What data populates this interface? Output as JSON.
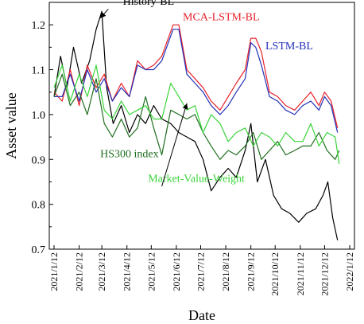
{
  "chart_data": {
    "type": "line",
    "xlabel": "Date",
    "ylabel": "Asset value",
    "xlim": [
      "2021-01-12",
      "2022-01-12"
    ],
    "ylim": [
      0.7,
      1.25
    ],
    "x_ticks": [
      "2021/1/12",
      "2021/2/12",
      "2021/3/12",
      "2021/4/12",
      "2021/5/12",
      "2021/6/12",
      "2021/7/12",
      "2021/8/12",
      "2021/9/12",
      "2021/10/12",
      "2021/11/12",
      "2021/12/12",
      "2022/1/12"
    ],
    "y_ticks": [
      "0.7",
      "0.8",
      "0.9",
      "1.0",
      "1.1",
      "1.2"
    ],
    "grid": false,
    "series": [
      {
        "name": "History-BL",
        "color": "#000000",
        "x": [
          "2021-01-12",
          "2021-01-20",
          "2021-01-28",
          "2021-02-05",
          "2021-02-15",
          "2021-02-25",
          "2021-03-05",
          "2021-03-12",
          "2021-03-18",
          "2021-03-26",
          "2021-04-05",
          "2021-04-15",
          "2021-04-25",
          "2021-05-05",
          "2021-05-15",
          "2021-05-25",
          "2021-06-05",
          "2021-06-15",
          "2021-06-25",
          "2021-07-05",
          "2021-07-15",
          "2021-07-25",
          "2021-08-05",
          "2021-08-15",
          "2021-08-25",
          "2021-09-05",
          "2021-09-12",
          "2021-09-20",
          "2021-09-30",
          "2021-10-10",
          "2021-10-20",
          "2021-10-30",
          "2021-11-10",
          "2021-11-20",
          "2021-12-01",
          "2021-12-10",
          "2021-12-16",
          "2021-12-22",
          "2021-12-28"
        ],
        "values": [
          1.04,
          1.13,
          1.06,
          1.15,
          1.07,
          1.12,
          1.19,
          1.23,
          1.06,
          0.98,
          1.02,
          0.96,
          1.0,
          0.98,
          1.02,
          0.99,
          0.98,
          0.96,
          0.95,
          0.94,
          0.9,
          0.83,
          0.86,
          0.88,
          0.86,
          0.92,
          0.98,
          0.85,
          0.9,
          0.82,
          0.79,
          0.78,
          0.76,
          0.78,
          0.79,
          0.82,
          0.85,
          0.77,
          0.72
        ]
      },
      {
        "name": "MCA-LSTM-BL",
        "color": "#e8212a",
        "x": [
          "2021-01-12",
          "2021-01-22",
          "2021-02-01",
          "2021-02-12",
          "2021-02-22",
          "2021-03-05",
          "2021-03-15",
          "2021-03-25",
          "2021-04-05",
          "2021-04-15",
          "2021-04-25",
          "2021-05-05",
          "2021-05-15",
          "2021-05-25",
          "2021-06-02",
          "2021-06-08",
          "2021-06-15",
          "2021-06-25",
          "2021-07-05",
          "2021-07-15",
          "2021-07-25",
          "2021-08-05",
          "2021-08-15",
          "2021-08-25",
          "2021-09-05",
          "2021-09-12",
          "2021-09-18",
          "2021-09-25",
          "2021-10-05",
          "2021-10-15",
          "2021-10-25",
          "2021-11-05",
          "2021-11-15",
          "2021-11-25",
          "2021-12-05",
          "2021-12-12",
          "2021-12-20",
          "2021-12-28"
        ],
        "values": [
          1.05,
          1.03,
          1.1,
          1.02,
          1.11,
          1.06,
          1.09,
          1.03,
          1.07,
          1.04,
          1.12,
          1.1,
          1.11,
          1.13,
          1.17,
          1.2,
          1.2,
          1.1,
          1.08,
          1.06,
          1.03,
          1.01,
          1.04,
          1.07,
          1.1,
          1.17,
          1.17,
          1.14,
          1.05,
          1.04,
          1.02,
          1.01,
          1.03,
          1.05,
          1.02,
          1.05,
          1.03,
          0.97
        ]
      },
      {
        "name": "LSTM-BL",
        "color": "#2230b8",
        "x": [
          "2021-01-12",
          "2021-01-22",
          "2021-02-01",
          "2021-02-12",
          "2021-02-22",
          "2021-03-05",
          "2021-03-15",
          "2021-03-25",
          "2021-04-05",
          "2021-04-15",
          "2021-04-25",
          "2021-05-05",
          "2021-05-15",
          "2021-05-25",
          "2021-06-02",
          "2021-06-08",
          "2021-06-15",
          "2021-06-25",
          "2021-07-05",
          "2021-07-15",
          "2021-07-25",
          "2021-08-05",
          "2021-08-15",
          "2021-08-25",
          "2021-09-05",
          "2021-09-12",
          "2021-09-18",
          "2021-09-25",
          "2021-10-05",
          "2021-10-15",
          "2021-10-25",
          "2021-11-05",
          "2021-11-15",
          "2021-11-25",
          "2021-12-05",
          "2021-12-12",
          "2021-12-20",
          "2021-12-28"
        ],
        "values": [
          1.04,
          1.04,
          1.09,
          1.03,
          1.1,
          1.05,
          1.08,
          1.03,
          1.06,
          1.04,
          1.11,
          1.1,
          1.1,
          1.12,
          1.16,
          1.19,
          1.19,
          1.09,
          1.07,
          1.05,
          1.02,
          1.0,
          1.02,
          1.05,
          1.08,
          1.16,
          1.15,
          1.11,
          1.04,
          1.03,
          1.01,
          1.0,
          1.02,
          1.03,
          1.01,
          1.04,
          1.02,
          0.96
        ]
      },
      {
        "name": "HS300 index",
        "color": "#1f6e1f",
        "x": [
          "2021-01-12",
          "2021-01-22",
          "2021-02-01",
          "2021-02-12",
          "2021-02-22",
          "2021-03-05",
          "2021-03-15",
          "2021-03-25",
          "2021-04-05",
          "2021-04-15",
          "2021-04-25",
          "2021-05-05",
          "2021-05-15",
          "2021-05-25",
          "2021-06-05",
          "2021-06-15",
          "2021-06-25",
          "2021-07-05",
          "2021-07-15",
          "2021-07-25",
          "2021-08-05",
          "2021-08-15",
          "2021-08-25",
          "2021-09-05",
          "2021-09-15",
          "2021-09-25",
          "2021-10-05",
          "2021-10-15",
          "2021-10-25",
          "2021-11-05",
          "2021-11-15",
          "2021-11-25",
          "2021-12-05",
          "2021-12-15",
          "2021-12-25",
          "2021-12-30"
        ],
        "values": [
          1.04,
          1.09,
          1.02,
          1.05,
          1.0,
          1.08,
          0.98,
          0.95,
          0.99,
          0.95,
          0.97,
          1.04,
          0.97,
          0.91,
          1.01,
          1.0,
          0.99,
          1.0,
          0.96,
          0.93,
          0.9,
          0.92,
          0.91,
          0.93,
          0.96,
          0.9,
          0.92,
          0.94,
          0.91,
          0.92,
          0.93,
          0.93,
          0.96,
          0.92,
          0.9,
          0.92
        ]
      },
      {
        "name": "Market-Value-Weight",
        "color": "#39d43a",
        "x": [
          "2021-01-12",
          "2021-01-22",
          "2021-02-01",
          "2021-02-12",
          "2021-02-22",
          "2021-03-05",
          "2021-03-15",
          "2021-03-25",
          "2021-04-05",
          "2021-04-15",
          "2021-04-25",
          "2021-05-05",
          "2021-05-15",
          "2021-05-25",
          "2021-06-05",
          "2021-06-15",
          "2021-06-25",
          "2021-07-05",
          "2021-07-15",
          "2021-07-25",
          "2021-08-05",
          "2021-08-15",
          "2021-08-25",
          "2021-09-05",
          "2021-09-15",
          "2021-09-25",
          "2021-10-05",
          "2021-10-15",
          "2021-10-25",
          "2021-11-05",
          "2021-11-15",
          "2021-11-25",
          "2021-12-05",
          "2021-12-15",
          "2021-12-25",
          "2021-12-30"
        ],
        "values": [
          1.06,
          1.11,
          1.03,
          1.09,
          1.04,
          1.11,
          1.01,
          0.99,
          1.03,
          1.0,
          1.01,
          1.02,
          0.99,
          0.99,
          1.07,
          1.04,
          1.01,
          1.02,
          0.96,
          1.0,
          0.98,
          0.94,
          0.96,
          0.97,
          0.93,
          0.96,
          0.95,
          0.93,
          0.96,
          0.94,
          0.94,
          0.98,
          0.93,
          0.96,
          0.95,
          0.89
        ]
      }
    ],
    "annotations": [
      {
        "text": "History-BL",
        "color": "#000000",
        "x": "2021-04-07",
        "y": 1.245
      },
      {
        "text": "MCA-LSTM-BL",
        "color": "#e8212a",
        "x": "2021-06-20",
        "y": 1.21
      },
      {
        "text": "LSTM-BL",
        "color": "#2230b8",
        "x": "2021-09-30",
        "y": 1.145
      },
      {
        "text": "HS300 index",
        "color": "#1f6e1f",
        "x": "2021-03-10",
        "y": 0.905
      },
      {
        "text": "Market-Value-Weight",
        "color": "#39d43a",
        "x": "2021-05-08",
        "y": 0.85
      }
    ],
    "arrows": [
      {
        "color": "#000000",
        "from": [
          "2021-03-20",
          1.235
        ],
        "to": [
          "2021-03-10",
          1.215
        ]
      },
      {
        "color": "#000000",
        "from": [
          "2021-05-25",
          0.84
        ],
        "to": [
          "2021-06-25",
          1.025
        ]
      }
    ]
  }
}
